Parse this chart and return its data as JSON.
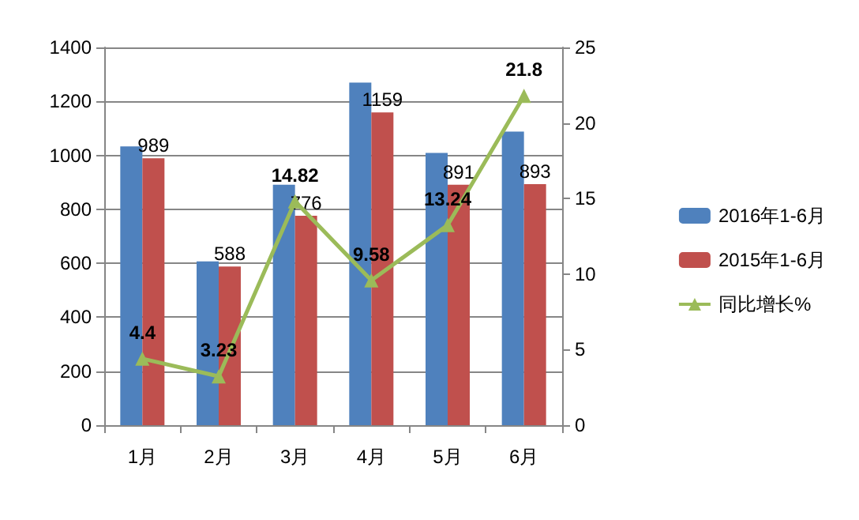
{
  "chart_data": {
    "type": "bar",
    "categories": [
      "1月",
      "2月",
      "3月",
      "4月",
      "5月",
      "6月"
    ],
    "series": [
      {
        "name": "2016年1-6月",
        "color": "#4f81bd",
        "values": [
          1033,
          607,
          891,
          1270,
          1009,
          1088
        ]
      },
      {
        "name": "2015年1-6月",
        "color": "#c0504d",
        "values": [
          989,
          588,
          776,
          1159,
          891,
          893
        ],
        "value_labels": [
          "989",
          "588",
          "776",
          "1159",
          "891",
          "893"
        ]
      },
      {
        "name": "同比增长%",
        "type": "line",
        "axis": "y2",
        "color": "#9bbb59",
        "values": [
          4.4,
          3.23,
          14.82,
          9.58,
          13.24,
          21.8
        ],
        "value_labels": [
          "4.4",
          "3.23",
          "14.82",
          "9.58",
          "13.24",
          "21.8"
        ]
      }
    ],
    "ylim": [
      0,
      1400
    ],
    "yticks": [
      0,
      200,
      400,
      600,
      800,
      1000,
      1200,
      1400
    ],
    "y2lim": [
      0,
      25
    ],
    "y2ticks": [
      0,
      5,
      10,
      15,
      20,
      25
    ],
    "grid": "y",
    "legend": "right",
    "marker": "triangle",
    "line_style": "solid"
  }
}
